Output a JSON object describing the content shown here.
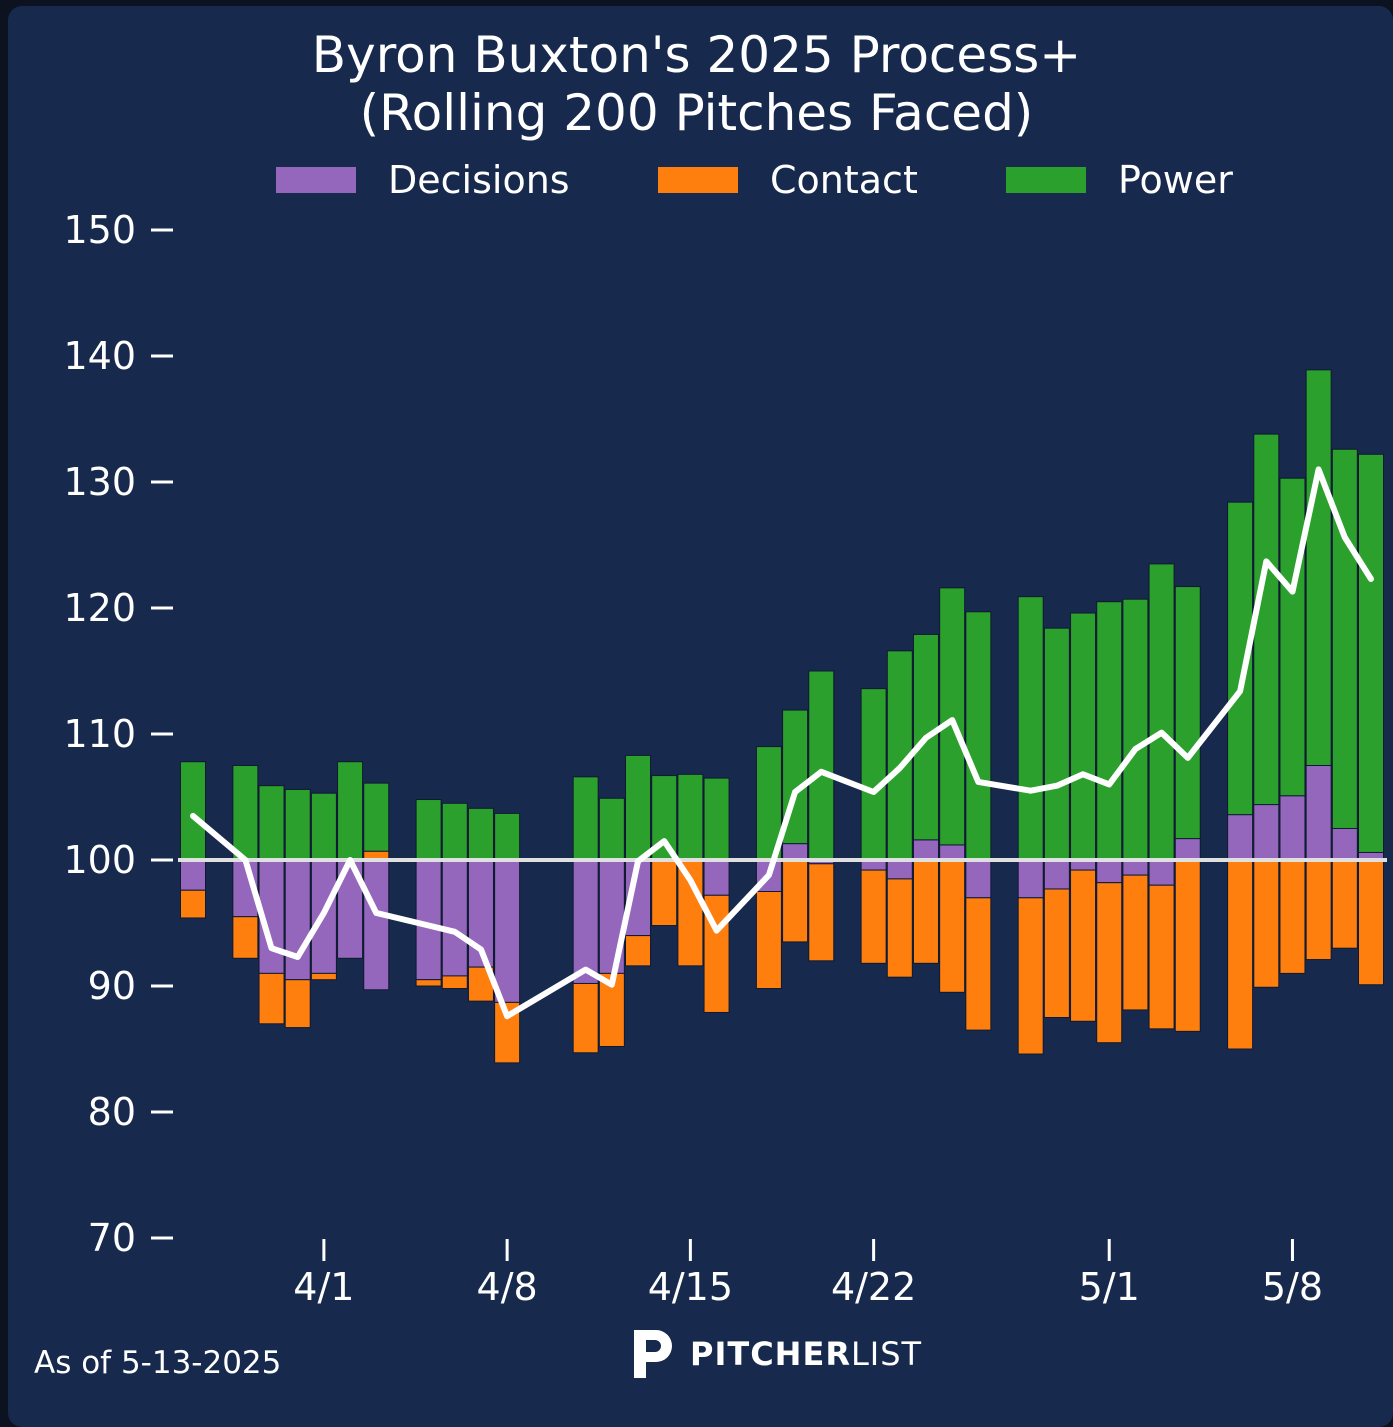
{
  "title_line1": "Byron Buxton's 2025 Process+",
  "title_line2": "(Rolling 200 Pitches Faced)",
  "footer": {
    "as_of": "As of 5-13-2025"
  },
  "logo": {
    "name_bold": "PITCHER",
    "name_light": "LIST"
  },
  "colors": {
    "background": "#17294d",
    "decisions": "#9467bd",
    "contact": "#ff7f0e",
    "power": "#2ca02c",
    "line": "#ffffff",
    "baseline": "#e0e0e0"
  },
  "chart_data": {
    "type": "bar",
    "stacked": true,
    "baseline": 100,
    "ylim": [
      70,
      150
    ],
    "yticks": [
      70,
      80,
      90,
      100,
      110,
      120,
      130,
      140,
      150
    ],
    "xlim": [
      "2025-03-27",
      "2025-05-11"
    ],
    "xticks": [
      {
        "date": "2025-04-01",
        "label": "4/1"
      },
      {
        "date": "2025-04-08",
        "label": "4/8"
      },
      {
        "date": "2025-04-15",
        "label": "4/15"
      },
      {
        "date": "2025-04-22",
        "label": "4/22"
      },
      {
        "date": "2025-05-01",
        "label": "5/1"
      },
      {
        "date": "2025-05-08",
        "label": "5/8"
      }
    ],
    "legend_position": "top",
    "grid": false,
    "series": [
      {
        "name": "Decisions",
        "color": "#9467bd"
      },
      {
        "name": "Contact",
        "color": "#ff7f0e"
      },
      {
        "name": "Power",
        "color": "#2ca02c"
      }
    ],
    "points": [
      {
        "date": "2025-03-27",
        "decisions": -2.4,
        "contact": -2.2,
        "power": 7.8,
        "process_plus": 103.5
      },
      {
        "date": "2025-03-29",
        "decisions": -4.5,
        "contact": -3.3,
        "power": 7.5,
        "process_plus": 100.0
      },
      {
        "date": "2025-03-30",
        "decisions": -9.0,
        "contact": -4.0,
        "power": 5.9,
        "process_plus": 93.0
      },
      {
        "date": "2025-03-31",
        "decisions": -9.5,
        "contact": -3.8,
        "power": 5.6,
        "process_plus": 92.3
      },
      {
        "date": "2025-04-01",
        "decisions": -9.0,
        "contact": -0.5,
        "power": 5.3,
        "process_plus": 95.8
      },
      {
        "date": "2025-04-02",
        "decisions": -7.8,
        "contact": 0.0,
        "power": 7.8,
        "process_plus": 100.0
      },
      {
        "date": "2025-04-03",
        "decisions": -10.3,
        "contact": 0.7,
        "power": 5.4,
        "process_plus": 95.8
      },
      {
        "date": "2025-04-05",
        "decisions": -9.5,
        "contact": -0.5,
        "power": 4.8,
        "process_plus": 94.8
      },
      {
        "date": "2025-04-06",
        "decisions": -9.2,
        "contact": -1.0,
        "power": 4.5,
        "process_plus": 94.3
      },
      {
        "date": "2025-04-07",
        "decisions": -8.5,
        "contact": -2.7,
        "power": 4.1,
        "process_plus": 92.9
      },
      {
        "date": "2025-04-08",
        "decisions": -11.3,
        "contact": -4.8,
        "power": 3.7,
        "process_plus": 87.6
      },
      {
        "date": "2025-04-11",
        "decisions": -9.8,
        "contact": -5.5,
        "power": 6.6,
        "process_plus": 91.3
      },
      {
        "date": "2025-04-12",
        "decisions": -9.0,
        "contact": -5.8,
        "power": 4.9,
        "process_plus": 90.1
      },
      {
        "date": "2025-04-13",
        "decisions": -6.0,
        "contact": -2.4,
        "power": 8.3,
        "process_plus": 99.9
      },
      {
        "date": "2025-04-14",
        "decisions": 0.0,
        "contact": -5.2,
        "power": 6.7,
        "process_plus": 101.5
      },
      {
        "date": "2025-04-15",
        "decisions": 0.0,
        "contact": -8.4,
        "power": 6.8,
        "process_plus": 98.4
      },
      {
        "date": "2025-04-16",
        "decisions": -2.8,
        "contact": -9.3,
        "power": 6.5,
        "process_plus": 94.4
      },
      {
        "date": "2025-04-18",
        "decisions": -2.5,
        "contact": -7.7,
        "power": 9.0,
        "process_plus": 98.8
      },
      {
        "date": "2025-04-19",
        "decisions": 1.3,
        "contact": -6.5,
        "power": 10.6,
        "process_plus": 105.4
      },
      {
        "date": "2025-04-20",
        "decisions": -0.3,
        "contact": -7.7,
        "power": 15.0,
        "process_plus": 107.0
      },
      {
        "date": "2025-04-22",
        "decisions": -0.8,
        "contact": -7.4,
        "power": 13.6,
        "process_plus": 105.4
      },
      {
        "date": "2025-04-23",
        "decisions": -1.5,
        "contact": -7.8,
        "power": 16.6,
        "process_plus": 107.3
      },
      {
        "date": "2025-04-24",
        "decisions": 1.6,
        "contact": -8.2,
        "power": 16.3,
        "process_plus": 109.7
      },
      {
        "date": "2025-04-25",
        "decisions": 1.2,
        "contact": -10.5,
        "power": 20.4,
        "process_plus": 111.1
      },
      {
        "date": "2025-04-26",
        "decisions": -3.0,
        "contact": -10.5,
        "power": 19.7,
        "process_plus": 106.2
      },
      {
        "date": "2025-04-28",
        "decisions": -3.0,
        "contact": -12.4,
        "power": 20.9,
        "process_plus": 105.5
      },
      {
        "date": "2025-04-29",
        "decisions": -2.3,
        "contact": -10.2,
        "power": 18.4,
        "process_plus": 105.9
      },
      {
        "date": "2025-04-30",
        "decisions": -0.8,
        "contact": -12.0,
        "power": 19.6,
        "process_plus": 106.8
      },
      {
        "date": "2025-05-01",
        "decisions": -1.8,
        "contact": -12.7,
        "power": 20.5,
        "process_plus": 106.0
      },
      {
        "date": "2025-05-02",
        "decisions": -1.2,
        "contact": -10.7,
        "power": 20.7,
        "process_plus": 108.8
      },
      {
        "date": "2025-05-03",
        "decisions": -2.0,
        "contact": -11.4,
        "power": 23.5,
        "process_plus": 110.1
      },
      {
        "date": "2025-05-04",
        "decisions": 1.7,
        "contact": -13.6,
        "power": 20.0,
        "process_plus": 108.1
      },
      {
        "date": "2025-05-06",
        "decisions": 3.6,
        "contact": -15.0,
        "power": 24.8,
        "process_plus": 113.4
      },
      {
        "date": "2025-05-07",
        "decisions": 4.4,
        "contact": -10.1,
        "power": 29.4,
        "process_plus": 123.7
      },
      {
        "date": "2025-05-08",
        "decisions": 5.1,
        "contact": -9.0,
        "power": 25.2,
        "process_plus": 121.3
      },
      {
        "date": "2025-05-09",
        "decisions": 7.5,
        "contact": -7.9,
        "power": 31.4,
        "process_plus": 131.0
      },
      {
        "date": "2025-05-10",
        "decisions": 2.5,
        "contact": -7.0,
        "power": 30.1,
        "process_plus": 125.6
      },
      {
        "date": "2025-05-11",
        "decisions": 0.6,
        "contact": -9.9,
        "power": 31.6,
        "process_plus": 122.3
      }
    ]
  }
}
